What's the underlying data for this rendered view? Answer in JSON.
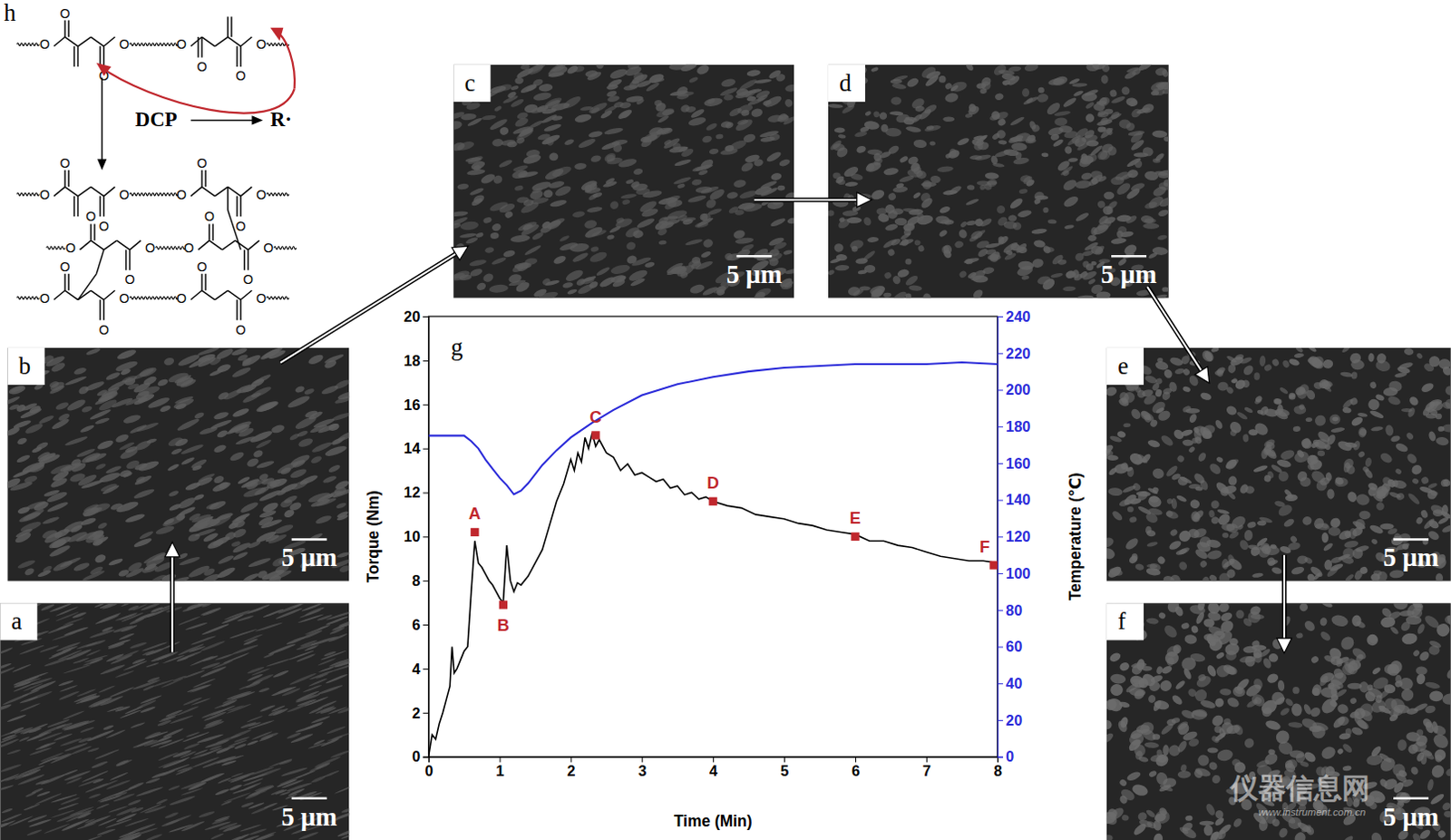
{
  "chart_data": {
    "type": "line",
    "x_label": "Time (Min)",
    "y_label": "Torque (Nm)",
    "y2_label": "Temperature (℃)",
    "xlim": [
      0,
      8
    ],
    "xticks": [
      0,
      1,
      2,
      3,
      4,
      5,
      6,
      7,
      8
    ],
    "ylim": [
      0,
      20
    ],
    "yticks": [
      0,
      2,
      4,
      6,
      8,
      10,
      12,
      14,
      16,
      18,
      20
    ],
    "y2lim": [
      0,
      240
    ],
    "y2ticks": [
      0,
      20,
      40,
      60,
      80,
      100,
      120,
      140,
      160,
      180,
      200,
      220,
      240
    ],
    "grid": false,
    "series": [
      {
        "color": "#000000",
        "axis": "y",
        "x": [
          0,
          0.05,
          0.1,
          0.15,
          0.2,
          0.25,
          0.3,
          0.33,
          0.36,
          0.4,
          0.45,
          0.5,
          0.55,
          0.6,
          0.65,
          0.7,
          0.75,
          0.8,
          0.85,
          0.9,
          0.95,
          1.0,
          1.05,
          1.1,
          1.15,
          1.2,
          1.25,
          1.3,
          1.4,
          1.5,
          1.6,
          1.7,
          1.8,
          1.9,
          2.0,
          2.05,
          2.1,
          2.15,
          2.2,
          2.25,
          2.3,
          2.35,
          2.4,
          2.5,
          2.6,
          2.7,
          2.8,
          2.9,
          3.0,
          3.1,
          3.2,
          3.3,
          3.4,
          3.5,
          3.6,
          3.7,
          3.8,
          3.9,
          4.0,
          4.2,
          4.4,
          4.6,
          4.8,
          5.0,
          5.2,
          5.4,
          5.6,
          5.8,
          6.0,
          6.2,
          6.4,
          6.6,
          6.8,
          7.0,
          7.2,
          7.4,
          7.6,
          7.8,
          8.0
        ],
        "values": [
          0,
          1.0,
          0.8,
          1.5,
          2.0,
          2.6,
          3.2,
          5.0,
          3.8,
          4.0,
          4.4,
          4.8,
          5.0,
          7.5,
          9.8,
          8.8,
          8.6,
          8.3,
          8.0,
          7.8,
          7.5,
          7.2,
          7.0,
          9.6,
          8.0,
          7.5,
          7.9,
          7.8,
          8.2,
          8.8,
          9.4,
          10.5,
          11.6,
          12.4,
          13.5,
          13.0,
          13.8,
          13.4,
          14.5,
          14.0,
          14.7,
          14.1,
          14.4,
          13.8,
          13.6,
          13.0,
          13.3,
          12.8,
          12.9,
          12.7,
          12.5,
          12.6,
          12.2,
          12.3,
          11.9,
          12.0,
          11.7,
          11.8,
          11.6,
          11.4,
          11.3,
          11.0,
          10.9,
          10.8,
          10.6,
          10.5,
          10.3,
          10.2,
          10.1,
          9.8,
          9.8,
          9.6,
          9.5,
          9.3,
          9.1,
          9.0,
          8.9,
          8.9,
          8.8
        ]
      },
      {
        "color": "#2b2bd9",
        "axis": "y2",
        "x": [
          0,
          0.5,
          0.6,
          0.7,
          0.8,
          0.9,
          1.0,
          1.1,
          1.2,
          1.3,
          1.4,
          1.5,
          1.6,
          1.8,
          2.0,
          2.3,
          2.6,
          3.0,
          3.5,
          4.0,
          4.5,
          5.0,
          6.0,
          7.0,
          7.5,
          8.0
        ],
        "values": [
          175,
          175,
          172,
          168,
          162,
          157,
          152,
          148,
          143,
          145,
          149,
          154,
          159,
          167,
          174,
          182,
          189,
          197,
          203,
          207,
          210,
          212,
          214,
          214,
          215,
          214
        ]
      }
    ],
    "annotations": [
      {
        "label": "A",
        "x": 0.65,
        "y": 10.2
      },
      {
        "label": "B",
        "x": 1.05,
        "y": 6.9
      },
      {
        "label": "C",
        "x": 2.35,
        "y": 14.6
      },
      {
        "label": "D",
        "x": 4.0,
        "y": 11.6
      },
      {
        "label": "E",
        "x": 6.0,
        "y": 10.0
      },
      {
        "label": "F",
        "x": 7.95,
        "y": 8.7
      }
    ],
    "annotation_color": "#c0272d"
  },
  "chart_panel_label": "g",
  "panels": [
    {
      "label": "a",
      "scale_bar": "5 μm"
    },
    {
      "label": "b",
      "scale_bar": "5 μm"
    },
    {
      "label": "c",
      "scale_bar": "5 μm"
    },
    {
      "label": "d",
      "scale_bar": "5 μm"
    },
    {
      "label": "e",
      "scale_bar": "5 μm"
    },
    {
      "label": "f",
      "scale_bar": "5 μm"
    }
  ],
  "scheme": {
    "label": "h",
    "initiator": "DCP",
    "radical": "R·",
    "atom_label": "O"
  },
  "watermark": {
    "name": "仪器信息网",
    "url": "www.instrument.com.cn"
  }
}
